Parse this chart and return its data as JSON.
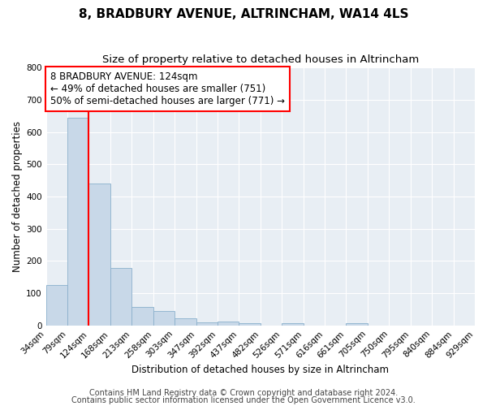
{
  "title": "8, BRADBURY AVENUE, ALTRINCHAM, WA14 4LS",
  "subtitle": "Size of property relative to detached houses in Altrincham",
  "xlabel": "Distribution of detached houses by size in Altrincham",
  "ylabel": "Number of detached properties",
  "bar_labels": [
    "34sqm",
    "79sqm",
    "124sqm",
    "168sqm",
    "213sqm",
    "258sqm",
    "303sqm",
    "347sqm",
    "392sqm",
    "437sqm",
    "482sqm",
    "526sqm",
    "571sqm",
    "616sqm",
    "661sqm",
    "705sqm",
    "750sqm",
    "795sqm",
    "840sqm",
    "884sqm",
    "929sqm"
  ],
  "bar_values": [
    125,
    645,
    440,
    178,
    58,
    45,
    22,
    10,
    13,
    8,
    0,
    7,
    0,
    0,
    7,
    0,
    0,
    0,
    0,
    0
  ],
  "bar_color": "#c8d8e8",
  "bar_edge_color": "#8ab0cc",
  "red_line_x": 2,
  "annotation_box": {
    "text_line1": "8 BRADBURY AVENUE: 124sqm",
    "text_line2": "← 49% of detached houses are smaller (751)",
    "text_line3": "50% of semi-detached houses are larger (771) →"
  },
  "ylim": [
    0,
    800
  ],
  "yticks": [
    0,
    100,
    200,
    300,
    400,
    500,
    600,
    700,
    800
  ],
  "footer_line1": "Contains HM Land Registry data © Crown copyright and database right 2024.",
  "footer_line2": "Contains public sector information licensed under the Open Government Licence v3.0.",
  "background_color": "#ffffff",
  "plot_background_color": "#e8eef4",
  "grid_color": "#ffffff",
  "title_fontsize": 11,
  "subtitle_fontsize": 9.5,
  "annotation_fontsize": 8.5,
  "footer_fontsize": 7,
  "axis_label_fontsize": 8.5,
  "tick_fontsize": 7.5
}
